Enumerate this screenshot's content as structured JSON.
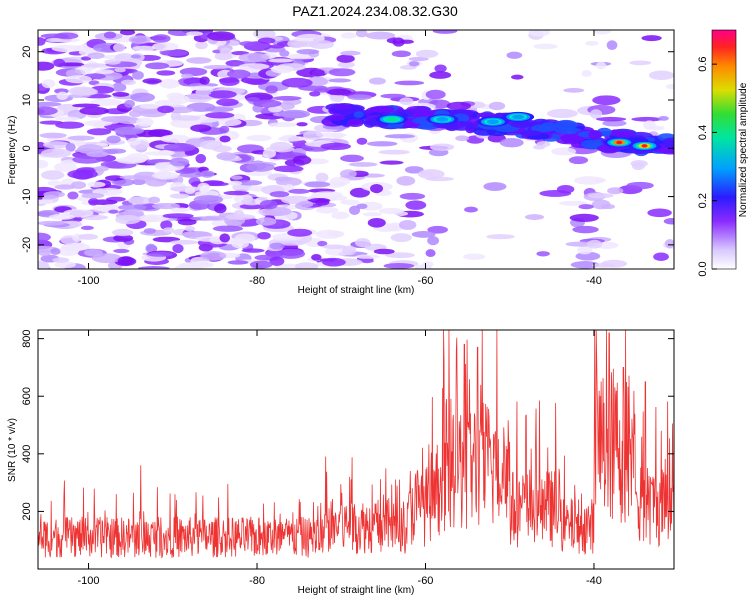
{
  "title": "PAZ1.2024.234.08.32.G30",
  "chart_data": [
    {
      "type": "heatmap",
      "xlabel": "Height of straight line (km)",
      "ylabel": "Frequency (Hz)",
      "xlim": [
        -106,
        -30.5
      ],
      "ylim": [
        -25,
        24.5
      ],
      "xticks": [
        -100,
        -80,
        -60,
        -40
      ],
      "yticks": [
        -20,
        -10,
        0,
        10,
        20
      ],
      "colorbar": {
        "label": "Normalized spectral amplitude",
        "range": [
          0,
          0.7
        ],
        "ticks": [
          "0.0",
          "0.2",
          "0.4",
          "0.6"
        ]
      },
      "ridge": [
        {
          "x": -70,
          "y": 7
        },
        {
          "x": -62,
          "y": 6.5
        },
        {
          "x": -55,
          "y": 5.5
        },
        {
          "x": -48,
          "y": 4.5
        },
        {
          "x": -44,
          "y": 3.5
        },
        {
          "x": -40,
          "y": 2
        },
        {
          "x": -35,
          "y": 1
        },
        {
          "x": -31,
          "y": 0.5
        }
      ],
      "peaks": [
        {
          "x": -37,
          "y": 1.2,
          "value": 0.68
        },
        {
          "x": -34,
          "y": 0.5,
          "value": 0.6
        },
        {
          "x": -64,
          "y": 6,
          "value": 0.35
        },
        {
          "x": -58,
          "y": 6,
          "value": 0.3
        },
        {
          "x": -52,
          "y": 5.5,
          "value": 0.3
        },
        {
          "x": -49,
          "y": 6.5,
          "value": 0.28
        }
      ]
    },
    {
      "type": "line",
      "xlabel": "Height of straight line (km)",
      "ylabel": "SNR (10 * v/v)",
      "xlim": [
        -106,
        -30.5
      ],
      "ylim": [
        0,
        830
      ],
      "xticks": [
        -100,
        -80,
        -60,
        -40
      ],
      "yticks": [
        200,
        400,
        600,
        800
      ],
      "color": "#ee3333",
      "baseline": 110,
      "segments": [
        {
          "from": -106,
          "to": -72,
          "mean": 110
        },
        {
          "from": -72,
          "to": -62,
          "mean": 150
        },
        {
          "from": -62,
          "to": -58,
          "mean": 220
        },
        {
          "from": -58,
          "to": -50,
          "mean": 360
        },
        {
          "from": -50,
          "to": -44,
          "mean": 210
        },
        {
          "from": -44,
          "to": -40,
          "mean": 150
        },
        {
          "from": -40,
          "to": -35,
          "mean": 430
        },
        {
          "from": -35,
          "to": -30.5,
          "mean": 220
        }
      ],
      "peaks": [
        {
          "x": -55.4,
          "y": 780
        },
        {
          "x": -53.8,
          "y": 770
        },
        {
          "x": -38.2,
          "y": 820
        },
        {
          "x": -36.5,
          "y": 700
        },
        {
          "x": -33.9,
          "y": 650
        },
        {
          "x": -69.0,
          "y": 320
        },
        {
          "x": -93.8,
          "y": 360
        }
      ]
    }
  ]
}
